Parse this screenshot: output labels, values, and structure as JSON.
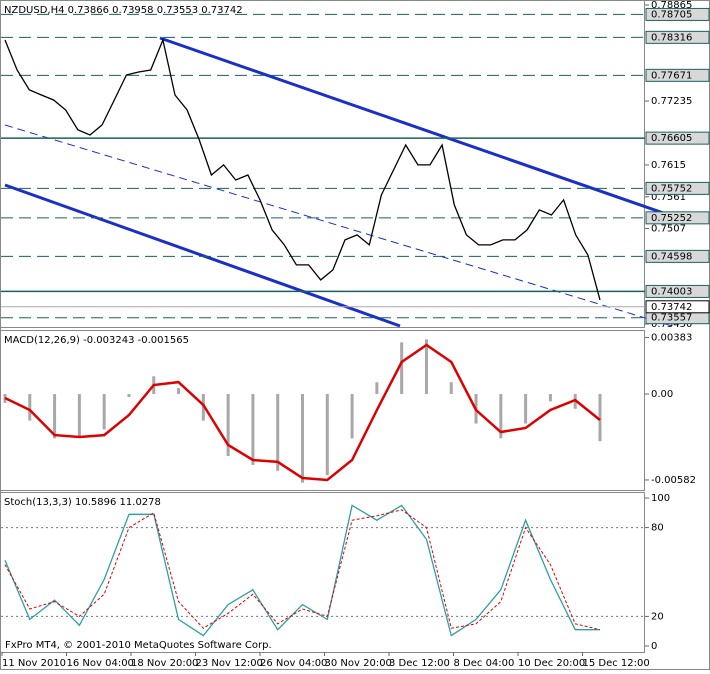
{
  "chart_data": [
    {
      "type": "line",
      "title": "NZDUSD,H4  0.73866 0.73958 0.73553 0.73742",
      "x_labels": [
        "11 Nov 2010",
        "16 Nov 04:00",
        "18 Nov 20:00",
        "23 Nov 12:00",
        "26 Nov 04:00",
        "30 Nov 20:00",
        "3 Dec 12:00",
        "8 Dec 04:00",
        "10 Dec 20:00",
        "15 Dec 12:00"
      ],
      "ylim": [
        0.7345,
        0.78865
      ],
      "yticks": [
        0.78865,
        0.77235,
        0.7615,
        0.7561,
        0.7507,
        {
          "value": 0.7345,
          "label": "0.73450"
        }
      ],
      "levels": [
        {
          "value": 0.78705,
          "style": "dashed"
        },
        {
          "value": 0.78316,
          "style": "dashed"
        },
        {
          "value": 0.77671,
          "style": "dashed"
        },
        {
          "value": 0.76605,
          "style": "solid"
        },
        {
          "value": 0.75752,
          "style": "dashed"
        },
        {
          "value": 0.75252,
          "style": "dashed"
        },
        {
          "value": 0.74598,
          "style": "dashed"
        },
        {
          "value": 0.74003,
          "style": "solid"
        },
        {
          "value": 0.73557,
          "style": "dashed"
        }
      ],
      "current_price": 0.73742,
      "footer": "FxPro MT4, © 2001-2010 MetaQuotes Software Corp.",
      "series": [
        {
          "name": "NZDUSD",
          "color": "#000000",
          "values": [
            0.78271,
            0.77762,
            0.77423,
            0.77338,
            0.77253,
            0.77083,
            0.76744,
            0.76659,
            0.76829,
            0.77253,
            0.77677,
            0.77728,
            0.77762,
            0.78271,
            0.77338,
            0.77083,
            0.76574,
            0.7598,
            0.7615,
            0.75895,
            0.7598,
            0.75556,
            0.75047,
            0.74792,
            0.74453,
            0.74453,
            0.74198,
            0.74368,
            0.74877,
            0.74962,
            0.74792,
            0.75641,
            0.76065,
            0.76489,
            0.7615,
            0.7615,
            0.76489,
            0.75471,
            0.74962,
            0.74792,
            0.74792,
            0.74877,
            0.74877,
            0.75047,
            0.75386,
            0.75301,
            0.75556,
            0.74962,
            0.74622,
            0.73859
          ]
        }
      ]
    },
    {
      "type": "line",
      "title": "MACD(12,26,9) -0.003243 -0.001565",
      "ylim": [
        -0.0065,
        0.0042
      ],
      "yticks": [
        0.00383,
        {
          "value": 0,
          "label": "0.00"
        },
        -0.00582
      ],
      "series": [
        {
          "name": "MACD",
          "type": "bar",
          "color": "#a8a8a8",
          "values": [
            -0.0006,
            -0.0018,
            -0.003,
            -0.0029,
            -0.0024,
            -0.0002,
            0.0012,
            0.0004,
            -0.0018,
            -0.0042,
            -0.0048,
            -0.0052,
            -0.006,
            -0.0055,
            -0.003,
            0.0008,
            0.0035,
            0.0037,
            0.0008,
            -0.002,
            -0.003,
            -0.002,
            -0.0005,
            -0.001,
            -0.0032
          ]
        },
        {
          "name": "Signal",
          "type": "line",
          "color": "#dd0000",
          "values": [
            -0.00027,
            -0.00108,
            -0.00278,
            -0.00291,
            -0.00278,
            -0.00142,
            0.00061,
            0.00081,
            -0.00074,
            -0.00345,
            -0.00447,
            -0.0046,
            -0.00569,
            -0.00582,
            -0.00447,
            -0.00108,
            0.00217,
            0.00332,
            0.00217,
            -0.00108,
            -0.00257,
            -0.0023,
            -0.00108,
            -0.00041,
            -0.00176
          ]
        }
      ]
    },
    {
      "type": "line",
      "title": "Stoch(13,3,3) 10.5896 11.0278",
      "ylim": [
        0,
        100
      ],
      "yticks": [
        100,
        80,
        20,
        0
      ],
      "levels": [
        {
          "value": 80,
          "style": "dashed"
        },
        {
          "value": 20,
          "style": "dashed"
        }
      ],
      "series": [
        {
          "name": "Main",
          "type": "line",
          "color": "#2aa0a8",
          "values": [
            58,
            18,
            31,
            14,
            45,
            89,
            89,
            18,
            7,
            28,
            38,
            11,
            28,
            18,
            95,
            85,
            95,
            72,
            7,
            18,
            38,
            85,
            45,
            11,
            11
          ]
        },
        {
          "name": "Signal",
          "type": "line",
          "dashed": true,
          "color": "#dd0000",
          "values": [
            55,
            25,
            30,
            20,
            35,
            80,
            90,
            30,
            12,
            22,
            35,
            15,
            25,
            20,
            85,
            88,
            92,
            80,
            12,
            15,
            30,
            80,
            55,
            15,
            11
          ]
        }
      ]
    }
  ]
}
